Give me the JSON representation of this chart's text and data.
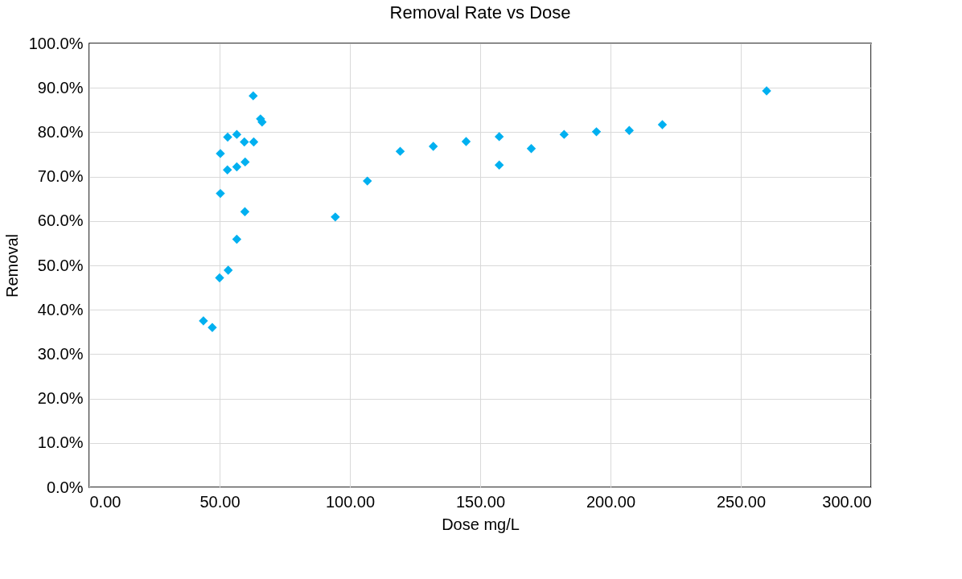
{
  "chart_data": {
    "type": "scatter",
    "title": "Removal Rate vs Dose",
    "xlabel": "Dose mg/L",
    "ylabel": "Removal",
    "x": [
      62.9,
      65.7,
      66.3,
      53.1,
      56.6,
      59.5,
      63.1,
      50.3,
      53.0,
      56.6,
      59.8,
      50.3,
      59.7,
      56.6,
      53.3,
      50.0,
      43.8,
      47.2,
      94.4,
      106.7,
      119.3,
      132.0,
      144.6,
      157.3,
      157.3,
      169.6,
      182.2,
      194.6,
      207.2,
      219.9,
      259.9
    ],
    "series": [
      {
        "color": "#00b0f0",
        "values": [
          88.2,
          83.0,
          82.3,
          78.9,
          79.5,
          77.8,
          77.8,
          75.2,
          71.5,
          72.2,
          73.3,
          66.2,
          62.1,
          55.9,
          48.9,
          47.2,
          37.5,
          36.0,
          60.9,
          69.0,
          75.7,
          76.8,
          77.9,
          79.0,
          72.6,
          76.3,
          79.5,
          80.1,
          80.4,
          81.7,
          89.3
        ]
      }
    ],
    "xlim": [
      0,
      300
    ],
    "xticks": [
      {
        "value": 0,
        "label": "0.00"
      },
      {
        "value": 50,
        "label": "50.00"
      },
      {
        "value": 100,
        "label": "100.00"
      },
      {
        "value": 150,
        "label": "150.00"
      },
      {
        "value": 200,
        "label": "200.00"
      },
      {
        "value": 250,
        "label": "250.00"
      },
      {
        "value": 300,
        "label": "300.00"
      }
    ],
    "ylim": [
      0,
      100
    ],
    "yticks": [
      {
        "value": 0,
        "label": "0.0%"
      },
      {
        "value": 10,
        "label": "10.0%"
      },
      {
        "value": 20,
        "label": "20.0%"
      },
      {
        "value": 30,
        "label": "30.0%"
      },
      {
        "value": 40,
        "label": "40.0%"
      },
      {
        "value": 50,
        "label": "50.0%"
      },
      {
        "value": 60,
        "label": "60.0%"
      },
      {
        "value": 70,
        "label": "70.0%"
      },
      {
        "value": 80,
        "label": "80.0%"
      },
      {
        "value": 90,
        "label": "90.0%"
      },
      {
        "value": 100,
        "label": "100.0%"
      }
    ],
    "grid": true,
    "marker": "diamond",
    "legend": false
  }
}
